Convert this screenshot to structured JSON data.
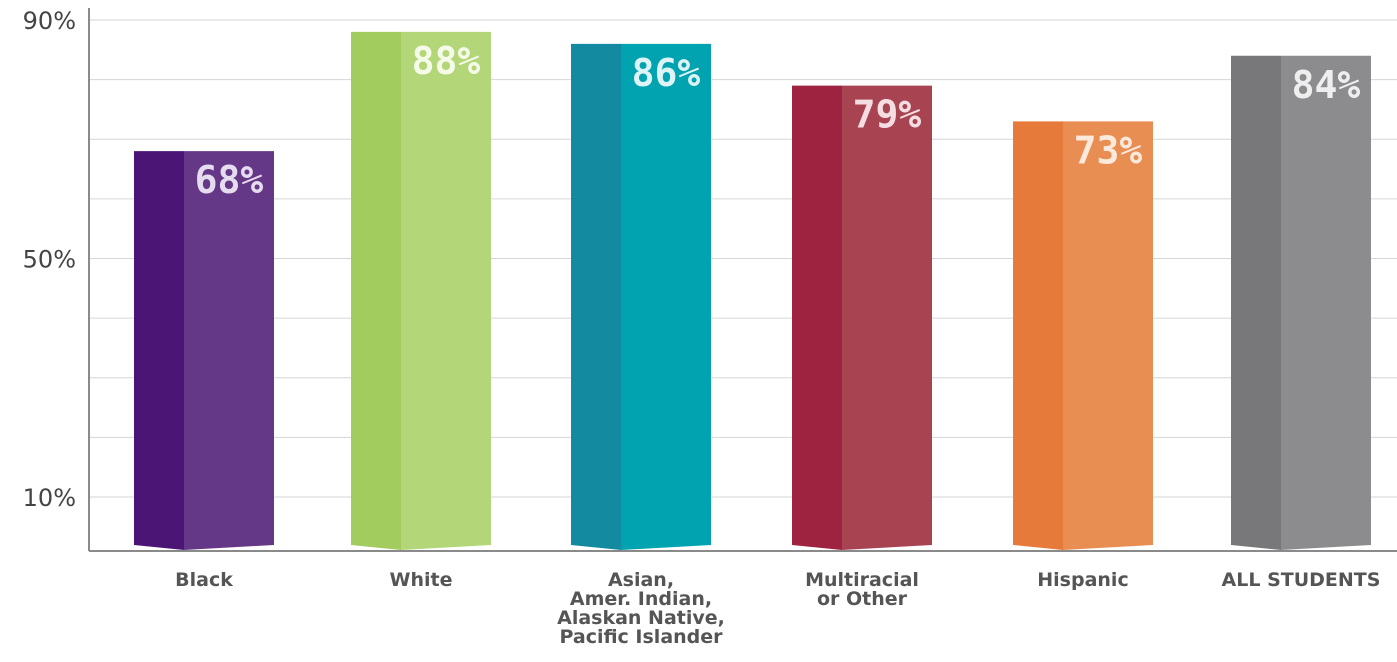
{
  "chart_data": {
    "type": "bar",
    "title": "",
    "xlabel": "",
    "ylabel": "",
    "ylim": [
      0,
      92
    ],
    "yticks": [
      10,
      50,
      90
    ],
    "ytick_labels": [
      "10%",
      "50%",
      "90%"
    ],
    "grid": true,
    "categories": [
      [
        "Black"
      ],
      [
        "White"
      ],
      [
        "Asian,",
        "Amer. Indian,",
        "Alaskan Native,",
        "Pacific Islander"
      ],
      [
        "Multiracial",
        "or Other"
      ],
      [
        "Hispanic"
      ],
      [
        "ALL STUDENTS"
      ]
    ],
    "values": [
      68,
      88,
      86,
      79,
      73,
      84
    ],
    "value_labels": [
      "68%",
      "88%",
      "86%",
      "79%",
      "73%",
      "84%"
    ],
    "colors": [
      {
        "dark": "#4a1575",
        "light": "#653787",
        "label": "#e6dcef"
      },
      {
        "dark": "#a2cc5e",
        "light": "#b2d678",
        "label": "#f5fbe8"
      },
      {
        "dark": "#138aa0",
        "light": "#00a3af",
        "label": "#ddf3f5"
      },
      {
        "dark": "#9e2340",
        "light": "#a84452",
        "label": "#f5dee2"
      },
      {
        "dark": "#e67a3a",
        "light": "#e98e53",
        "label": "#fbe9dc"
      },
      {
        "dark": "#78787b",
        "light": "#8c8c8f",
        "label": "#eeeeef"
      }
    ]
  }
}
